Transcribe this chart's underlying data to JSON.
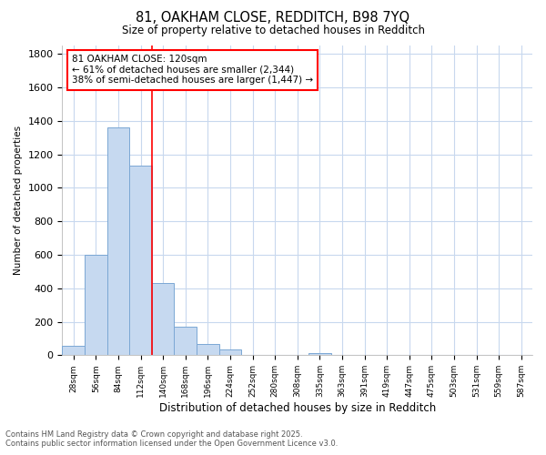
{
  "title_line1": "81, OAKHAM CLOSE, REDDITCH, B98 7YQ",
  "title_line2": "Size of property relative to detached houses in Redditch",
  "xlabel": "Distribution of detached houses by size in Redditch",
  "ylabel": "Number of detached properties",
  "bar_labels": [
    "28sqm",
    "56sqm",
    "84sqm",
    "112sqm",
    "140sqm",
    "168sqm",
    "196sqm",
    "224sqm",
    "252sqm",
    "280sqm",
    "308sqm",
    "335sqm",
    "363sqm",
    "391sqm",
    "419sqm",
    "447sqm",
    "475sqm",
    "503sqm",
    "531sqm",
    "559sqm",
    "587sqm"
  ],
  "bar_values": [
    55,
    600,
    1360,
    1130,
    430,
    170,
    65,
    35,
    0,
    0,
    0,
    15,
    0,
    0,
    0,
    0,
    0,
    0,
    0,
    0,
    0
  ],
  "bar_color": "#c6d9f0",
  "bar_edgecolor": "#7ba7d4",
  "ylim": [
    0,
    1850
  ],
  "yticks": [
    0,
    200,
    400,
    600,
    800,
    1000,
    1200,
    1400,
    1600,
    1800
  ],
  "redline_x": 3.5,
  "annotation_text": "81 OAKHAM CLOSE: 120sqm\n← 61% of detached houses are smaller (2,344)\n38% of semi-detached houses are larger (1,447) →",
  "annotation_box_facecolor": "white",
  "annotation_box_edgecolor": "red",
  "footer_line1": "Contains HM Land Registry data © Crown copyright and database right 2025.",
  "footer_line2": "Contains public sector information licensed under the Open Government Licence v3.0.",
  "plot_bg_color": "#ffffff",
  "fig_bg_color": "#ffffff",
  "grid_color": "#c8d8ee",
  "fig_width": 6.0,
  "fig_height": 5.0,
  "dpi": 100
}
